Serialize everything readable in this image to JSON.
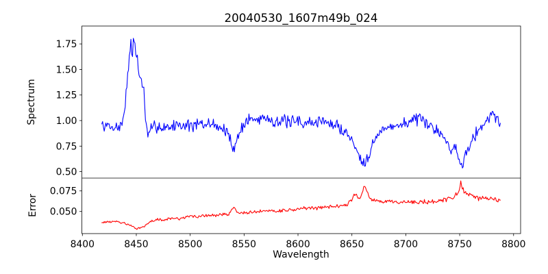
{
  "chart_data": {
    "type": "line",
    "title": "20040530_1607m49b_024",
    "xlabel": "Wavelength",
    "xlim": [
      8399.5,
      8806.5
    ],
    "xticks": [
      8400,
      8450,
      8500,
      8550,
      8600,
      8650,
      8700,
      8750,
      8800
    ],
    "grid": false,
    "legend": "none",
    "panels": [
      {
        "name": "spectrum",
        "ylabel": "Spectrum",
        "ylim": [
          0.437,
          1.925
        ],
        "ytick_values": [
          0.5,
          0.75,
          1.0,
          1.25,
          1.5,
          1.75
        ],
        "ytick_labels": [
          "0.50",
          "0.75",
          "1.00",
          "1.25",
          "1.50",
          "1.75"
        ]
      },
      {
        "name": "error",
        "ylabel": "Error",
        "ylim": [
          0.0231,
          0.0906
        ],
        "ytick_values": [
          0.05,
          0.075
        ],
        "ytick_labels": [
          "0.050",
          "0.075"
        ]
      }
    ],
    "series": [
      {
        "name": "spectrum",
        "panel": 0,
        "color": "#0000ff",
        "x_start": 8418,
        "x_end": 8788,
        "x_step": 0.75,
        "noise_amplitude": 0.075,
        "noise_ramp": [
          1.0,
          1.0
        ],
        "noise_seed": 7,
        "keypoints": [
          [
            8418,
            0.955
          ],
          [
            8421,
            0.935
          ],
          [
            8424,
            0.95
          ],
          [
            8427,
            0.925
          ],
          [
            8430,
            0.945
          ],
          [
            8433,
            0.93
          ],
          [
            8436,
            0.95
          ],
          [
            8438,
            1.02
          ],
          [
            8440,
            1.22
          ],
          [
            8442,
            1.42
          ],
          [
            8444,
            1.66
          ],
          [
            8445,
            1.74
          ],
          [
            8446,
            1.6
          ],
          [
            8447,
            1.73
          ],
          [
            8448,
            1.83
          ],
          [
            8449,
            1.72
          ],
          [
            8450,
            1.58
          ],
          [
            8451,
            1.66
          ],
          [
            8452,
            1.5
          ],
          [
            8453,
            1.38
          ],
          [
            8454,
            1.44
          ],
          [
            8455,
            1.41
          ],
          [
            8456,
            1.32
          ],
          [
            8457,
            1.28
          ],
          [
            8458,
            1.12
          ],
          [
            8459,
            0.94
          ],
          [
            8461,
            0.84
          ],
          [
            8463,
            0.9
          ],
          [
            8466,
            0.94
          ],
          [
            8470,
            0.95
          ],
          [
            8474,
            0.925
          ],
          [
            8478,
            0.95
          ],
          [
            8482,
            0.93
          ],
          [
            8486,
            0.955
          ],
          [
            8490,
            0.965
          ],
          [
            8494,
            0.945
          ],
          [
            8498,
            0.965
          ],
          [
            8502,
            0.94
          ],
          [
            8506,
            0.96
          ],
          [
            8510,
            0.965
          ],
          [
            8514,
            0.945
          ],
          [
            8518,
            0.98
          ],
          [
            8522,
            0.96
          ],
          [
            8526,
            0.945
          ],
          [
            8530,
            0.92
          ],
          [
            8534,
            0.88
          ],
          [
            8537,
            0.82
          ],
          [
            8540,
            0.73
          ],
          [
            8542,
            0.76
          ],
          [
            8544,
            0.84
          ],
          [
            8547,
            0.91
          ],
          [
            8550,
            0.97
          ],
          [
            8553,
            1.0
          ],
          [
            8556,
            1.02
          ],
          [
            8560,
            1.0
          ],
          [
            8564,
            1.02
          ],
          [
            8568,
            1.04
          ],
          [
            8572,
            1.02
          ],
          [
            8576,
            1.0
          ],
          [
            8580,
            1.0
          ],
          [
            8584,
            0.98
          ],
          [
            8588,
            1.0
          ],
          [
            8592,
            0.975
          ],
          [
            8596,
            0.985
          ],
          [
            8600,
            1.0
          ],
          [
            8604,
            0.975
          ],
          [
            8608,
            0.99
          ],
          [
            8612,
            0.965
          ],
          [
            8616,
            0.985
          ],
          [
            8620,
            0.995
          ],
          [
            8624,
            1.0
          ],
          [
            8628,
            0.975
          ],
          [
            8632,
            0.96
          ],
          [
            8636,
            0.945
          ],
          [
            8640,
            0.92
          ],
          [
            8644,
            0.89
          ],
          [
            8648,
            0.84
          ],
          [
            8652,
            0.77
          ],
          [
            8655,
            0.7
          ],
          [
            8658,
            0.64
          ],
          [
            8661,
            0.595
          ],
          [
            8664,
            0.63
          ],
          [
            8667,
            0.71
          ],
          [
            8670,
            0.79
          ],
          [
            8674,
            0.86
          ],
          [
            8678,
            0.9
          ],
          [
            8682,
            0.925
          ],
          [
            8686,
            0.945
          ],
          [
            8690,
            0.965
          ],
          [
            8694,
            0.95
          ],
          [
            8698,
            0.965
          ],
          [
            8702,
            0.985
          ],
          [
            8706,
            1.005
          ],
          [
            8710,
            1.02
          ],
          [
            8714,
            0.995
          ],
          [
            8718,
            0.965
          ],
          [
            8722,
            0.945
          ],
          [
            8726,
            0.935
          ],
          [
            8730,
            0.905
          ],
          [
            8734,
            0.86
          ],
          [
            8738,
            0.79
          ],
          [
            8741,
            0.7
          ],
          [
            8744,
            0.72
          ],
          [
            8746,
            0.78
          ],
          [
            8748,
            0.68
          ],
          [
            8750,
            0.58
          ],
          [
            8752,
            0.545
          ],
          [
            8754,
            0.63
          ],
          [
            8756,
            0.7
          ],
          [
            8759,
            0.77
          ],
          [
            8762,
            0.84
          ],
          [
            8766,
            0.89
          ],
          [
            8770,
            0.935
          ],
          [
            8774,
            0.985
          ],
          [
            8777,
            1.03
          ],
          [
            8780,
            1.07
          ],
          [
            8782,
            1.04
          ],
          [
            8784,
            1.0
          ],
          [
            8786,
            1.03
          ],
          [
            8788,
            0.95
          ]
        ]
      },
      {
        "name": "error",
        "panel": 1,
        "color": "#ff0000",
        "x_start": 8418,
        "x_end": 8788,
        "x_step": 0.75,
        "noise_amplitude": 0.0026,
        "noise_ramp": [
          0.6,
          1.5
        ],
        "noise_seed": 13,
        "keypoints": [
          [
            8418,
            0.0368
          ],
          [
            8422,
            0.0372
          ],
          [
            8426,
            0.0376
          ],
          [
            8430,
            0.0378
          ],
          [
            8434,
            0.0372
          ],
          [
            8438,
            0.036
          ],
          [
            8441,
            0.0345
          ],
          [
            8444,
            0.0328
          ],
          [
            8447,
            0.0308
          ],
          [
            8450,
            0.0295
          ],
          [
            8452,
            0.0298
          ],
          [
            8454,
            0.0306
          ],
          [
            8457,
            0.032
          ],
          [
            8460,
            0.0345
          ],
          [
            8463,
            0.0372
          ],
          [
            8466,
            0.039
          ],
          [
            8470,
            0.0402
          ],
          [
            8474,
            0.0398
          ],
          [
            8478,
            0.0405
          ],
          [
            8482,
            0.0412
          ],
          [
            8486,
            0.0416
          ],
          [
            8490,
            0.0414
          ],
          [
            8494,
            0.042
          ],
          [
            8498,
            0.0432
          ],
          [
            8501,
            0.0455
          ],
          [
            8504,
            0.0436
          ],
          [
            8508,
            0.044
          ],
          [
            8512,
            0.0446
          ],
          [
            8516,
            0.0452
          ],
          [
            8520,
            0.0458
          ],
          [
            8524,
            0.0452
          ],
          [
            8528,
            0.046
          ],
          [
            8532,
            0.0465
          ],
          [
            8536,
            0.0472
          ],
          [
            8539,
            0.052
          ],
          [
            8541,
            0.056
          ],
          [
            8543,
            0.0495
          ],
          [
            8546,
            0.0478
          ],
          [
            8550,
            0.0488
          ],
          [
            8554,
            0.0482
          ],
          [
            8558,
            0.049
          ],
          [
            8562,
            0.0496
          ],
          [
            8566,
            0.05
          ],
          [
            8570,
            0.0508
          ],
          [
            8574,
            0.0515
          ],
          [
            8578,
            0.0512
          ],
          [
            8582,
            0.0508
          ],
          [
            8586,
            0.0512
          ],
          [
            8590,
            0.0518
          ],
          [
            8594,
            0.0522
          ],
          [
            8598,
            0.0526
          ],
          [
            8602,
            0.0532
          ],
          [
            8606,
            0.0538
          ],
          [
            8610,
            0.0542
          ],
          [
            8614,
            0.0538
          ],
          [
            8618,
            0.0545
          ],
          [
            8622,
            0.055
          ],
          [
            8626,
            0.0553
          ],
          [
            8630,
            0.0558
          ],
          [
            8634,
            0.0565
          ],
          [
            8638,
            0.0572
          ],
          [
            8642,
            0.058
          ],
          [
            8646,
            0.0592
          ],
          [
            8650,
            0.064
          ],
          [
            8653,
            0.0718
          ],
          [
            8656,
            0.0655
          ],
          [
            8659,
            0.0705
          ],
          [
            8661,
            0.0815
          ],
          [
            8663,
            0.0772
          ],
          [
            8666,
            0.0675
          ],
          [
            8670,
            0.0638
          ],
          [
            8674,
            0.0618
          ],
          [
            8678,
            0.0608
          ],
          [
            8682,
            0.0615
          ],
          [
            8686,
            0.0622
          ],
          [
            8690,
            0.0612
          ],
          [
            8694,
            0.0602
          ],
          [
            8698,
            0.0606
          ],
          [
            8702,
            0.0612
          ],
          [
            8706,
            0.0616
          ],
          [
            8710,
            0.061
          ],
          [
            8714,
            0.0618
          ],
          [
            8718,
            0.0614
          ],
          [
            8722,
            0.0618
          ],
          [
            8726,
            0.062
          ],
          [
            8730,
            0.0625
          ],
          [
            8734,
            0.0638
          ],
          [
            8738,
            0.0648
          ],
          [
            8742,
            0.066
          ],
          [
            8745,
            0.0678
          ],
          [
            8748,
            0.0715
          ],
          [
            8750,
            0.079
          ],
          [
            8751,
            0.0865
          ],
          [
            8752,
            0.08
          ],
          [
            8754,
            0.0745
          ],
          [
            8757,
            0.0705
          ],
          [
            8760,
            0.0692
          ],
          [
            8764,
            0.0672
          ],
          [
            8768,
            0.0658
          ],
          [
            8772,
            0.0652
          ],
          [
            8776,
            0.0648
          ],
          [
            8779,
            0.0662
          ],
          [
            8782,
            0.0655
          ],
          [
            8785,
            0.0642
          ],
          [
            8788,
            0.0652
          ]
        ]
      }
    ],
    "colors": {
      "spectrum_line": "#0000ff",
      "error_line": "#ff0000",
      "axis": "#000000",
      "background": "#ffffff"
    }
  }
}
